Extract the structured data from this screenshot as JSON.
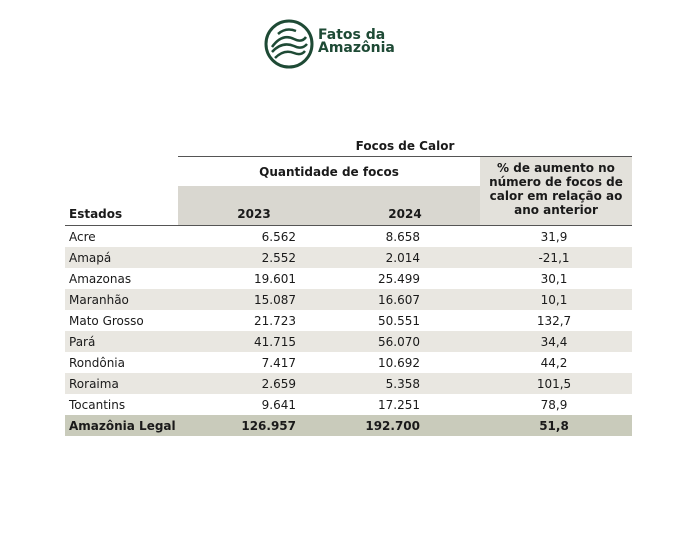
{
  "logo": {
    "line1": "Fatos da",
    "line2": "Amazônia"
  },
  "table": {
    "group_title": "Focos de Calor",
    "count_title": "Quantidade de focos",
    "change_title": "% de aumento no número de focos de calor em relação ao ano anterior",
    "columns": [
      "Estados",
      "2023",
      "2024"
    ],
    "rows": [
      [
        "Acre",
        "6.562",
        "8.658",
        "31,9"
      ],
      [
        "Amapá",
        "2.552",
        "2.014",
        "-21,1"
      ],
      [
        "Amazonas",
        "19.601",
        "25.499",
        "30,1"
      ],
      [
        "Maranhão",
        "15.087",
        "16.607",
        "10,1"
      ],
      [
        "Mato Grosso",
        "21.723",
        "50.551",
        "132,7"
      ],
      [
        "Pará",
        "41.715",
        "56.070",
        "34,4"
      ],
      [
        "Rondônia",
        "7.417",
        "10.692",
        "44,2"
      ],
      [
        "Roraima",
        "2.659",
        "5.358",
        "101,5"
      ],
      [
        "Tocantins",
        "9.641",
        "17.251",
        "78,9"
      ]
    ],
    "total": [
      "Amazônia Legal",
      "126.957",
      "192.700",
      "51,8"
    ]
  }
}
